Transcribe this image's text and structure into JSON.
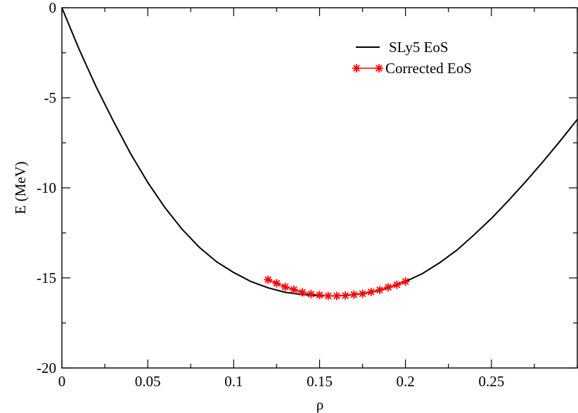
{
  "chart_data": {
    "type": "line",
    "xlabel": "ρ",
    "ylabel": "E (MeV)",
    "xlim": [
      0,
      0.3
    ],
    "ylim": [
      -20,
      0
    ],
    "x_ticks": [
      0,
      0.05,
      0.1,
      0.15,
      0.2,
      0.25
    ],
    "x_tick_labels": [
      "0",
      "0.05",
      "0.1",
      "0.15",
      "0.2",
      "0.25"
    ],
    "x_minor_step": 0.025,
    "y_ticks": [
      -20,
      -15,
      -10,
      -5,
      0
    ],
    "y_tick_labels": [
      "-20",
      "-15",
      "-10",
      "-5",
      "0"
    ],
    "y_minor_step": 2.5,
    "grid": false,
    "legend_position": "top-right",
    "series": [
      {
        "name": "SLy5 EoS",
        "color": "#000000",
        "marker": "none",
        "x": [
          0.0,
          0.01,
          0.02,
          0.03,
          0.04,
          0.05,
          0.06,
          0.07,
          0.08,
          0.09,
          0.1,
          0.11,
          0.12,
          0.13,
          0.14,
          0.15,
          0.16,
          0.17,
          0.18,
          0.19,
          0.2,
          0.21,
          0.22,
          0.23,
          0.24,
          0.25,
          0.26,
          0.27,
          0.28,
          0.29,
          0.3
        ],
        "y": [
          0.0,
          -2.3,
          -4.4,
          -6.3,
          -8.1,
          -9.7,
          -11.1,
          -12.3,
          -13.3,
          -14.1,
          -14.7,
          -15.2,
          -15.55,
          -15.8,
          -15.93,
          -15.99,
          -16.0,
          -15.93,
          -15.8,
          -15.55,
          -15.2,
          -14.75,
          -14.15,
          -13.45,
          -12.6,
          -11.7,
          -10.7,
          -9.65,
          -8.55,
          -7.4,
          -6.2
        ]
      },
      {
        "name": "Corrected EoS",
        "color": "#ff0000",
        "marker": "asterisk",
        "x": [
          0.12,
          0.125,
          0.13,
          0.135,
          0.14,
          0.145,
          0.15,
          0.155,
          0.16,
          0.165,
          0.17,
          0.175,
          0.18,
          0.185,
          0.19,
          0.195,
          0.2
        ],
        "y": [
          -15.1,
          -15.3,
          -15.5,
          -15.65,
          -15.8,
          -15.9,
          -15.95,
          -16.0,
          -16.0,
          -15.98,
          -15.93,
          -15.88,
          -15.78,
          -15.67,
          -15.52,
          -15.38,
          -15.2
        ]
      }
    ]
  }
}
